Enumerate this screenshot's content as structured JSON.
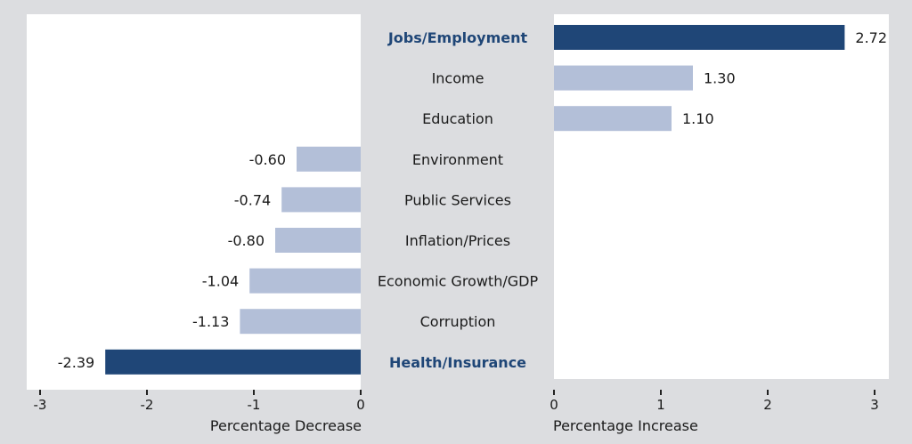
{
  "chart_data": {
    "type": "bar",
    "orientation": "horizontal-diverging",
    "categories": [
      "Jobs/Employment",
      "Income",
      "Education",
      "Environment",
      "Public Services",
      "Inflation/Prices",
      "Economic Growth/GDP",
      "Corruption",
      "Health/Insurance"
    ],
    "highlighted": [
      "Jobs/Employment",
      "Health/Insurance"
    ],
    "values": [
      2.72,
      1.3,
      1.1,
      -0.6,
      -0.74,
      -0.8,
      -1.04,
      -1.13,
      -2.39
    ],
    "value_labels": [
      "2.72",
      "1.30",
      "1.10",
      "-0.60",
      "-0.74",
      "-0.80",
      "-1.04",
      "-1.13",
      "-2.39"
    ],
    "left_axis": {
      "label": "Percentage Decrease",
      "xlim": [
        -3,
        0
      ],
      "ticks": [
        "-3",
        "-2",
        "-1",
        "0"
      ]
    },
    "right_axis": {
      "label": "Percentage Increase",
      "xlim": [
        0,
        3
      ],
      "ticks": [
        "0",
        "1",
        "2",
        "3"
      ]
    },
    "colors": {
      "highlight": "#1f4677",
      "normal": "#b3bfd8",
      "background": "#dcdde0",
      "panel": "#ffffff"
    }
  }
}
